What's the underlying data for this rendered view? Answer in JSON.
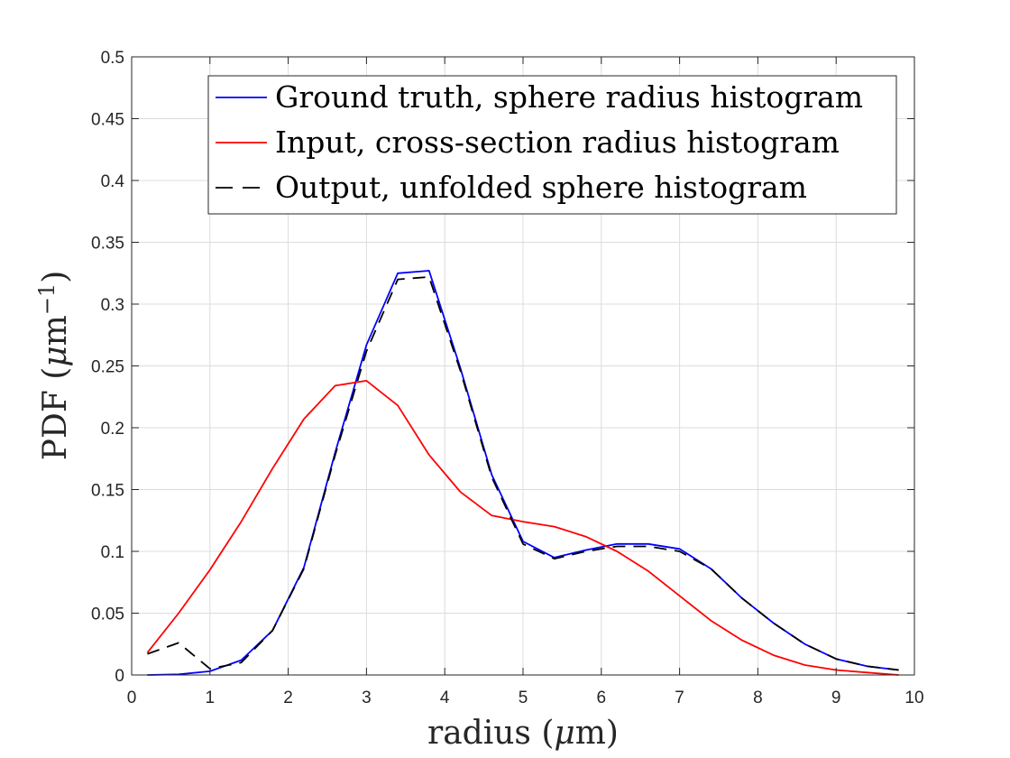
{
  "chart_data": {
    "type": "line",
    "xlabel_text": "radius (",
    "xlabel_symbol": "μ",
    "xlabel_unit": "m)",
    "ylabel_text": "PDF (",
    "ylabel_symbol": "μ",
    "ylabel_unit": "m",
    "ylabel_exponent": "−1",
    "ylabel_close": ")",
    "xlim": [
      0,
      10
    ],
    "ylim": [
      0,
      0.5
    ],
    "xticks": [
      0,
      1,
      2,
      3,
      4,
      5,
      6,
      7,
      8,
      9,
      10
    ],
    "yticks": [
      0,
      0.05,
      0.1,
      0.15,
      0.2,
      0.25,
      0.3,
      0.35,
      0.4,
      0.45,
      0.5
    ],
    "xtick_labels": [
      "0",
      "1",
      "2",
      "3",
      "4",
      "5",
      "6",
      "7",
      "8",
      "9",
      "10"
    ],
    "ytick_labels": [
      "0",
      "0.05",
      "0.1",
      "0.15",
      "0.2",
      "0.25",
      "0.3",
      "0.35",
      "0.4",
      "0.45",
      "0.5"
    ],
    "grid": true,
    "legend_position": "top-right",
    "x": [
      0.2,
      0.6,
      1.0,
      1.4,
      1.8,
      2.2,
      2.6,
      3.0,
      3.4,
      3.8,
      4.2,
      4.6,
      5.0,
      5.4,
      5.8,
      6.2,
      6.6,
      7.0,
      7.4,
      7.8,
      8.2,
      8.6,
      9.0,
      9.4,
      9.8
    ],
    "series": [
      {
        "name": "Ground truth, sphere radius histogram",
        "color": "#0000ff",
        "dash": "solid",
        "values": [
          0.0,
          0.0005,
          0.003,
          0.012,
          0.036,
          0.087,
          0.18,
          0.267,
          0.325,
          0.327,
          0.248,
          0.162,
          0.108,
          0.095,
          0.101,
          0.106,
          0.106,
          0.102,
          0.086,
          0.062,
          0.042,
          0.025,
          0.013,
          0.007,
          0.004
        ]
      },
      {
        "name": "Input, cross-section radius histogram",
        "color": "#ff0000",
        "dash": "solid",
        "values": [
          0.018,
          0.05,
          0.085,
          0.124,
          0.167,
          0.207,
          0.234,
          0.238,
          0.218,
          0.178,
          0.148,
          0.129,
          0.124,
          0.12,
          0.112,
          0.1,
          0.084,
          0.064,
          0.044,
          0.028,
          0.016,
          0.008,
          0.004,
          0.002,
          0.0
        ]
      },
      {
        "name": "Output, unfolded sphere histogram",
        "color": "#000000",
        "dash": "dashed",
        "values": [
          0.017,
          0.026,
          0.005,
          0.01,
          0.036,
          0.086,
          0.178,
          0.262,
          0.32,
          0.322,
          0.246,
          0.16,
          0.106,
          0.094,
          0.1,
          0.104,
          0.104,
          0.1,
          0.086,
          0.062,
          0.042,
          0.025,
          0.013,
          0.007,
          0.004
        ]
      }
    ]
  }
}
